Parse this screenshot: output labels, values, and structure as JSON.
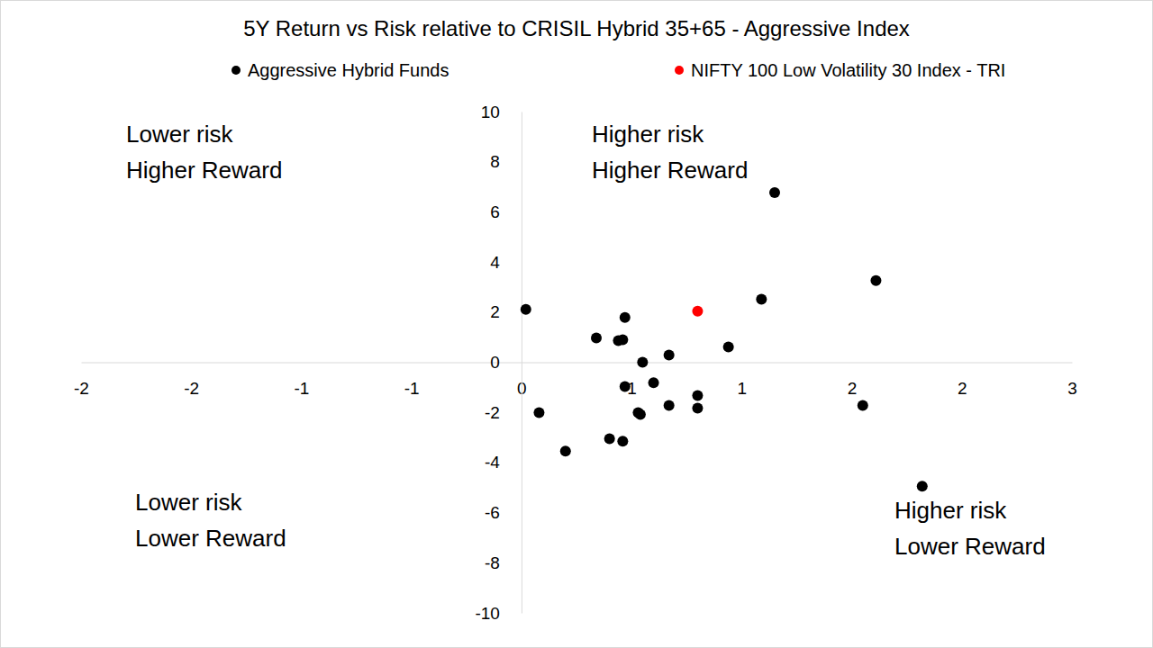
{
  "chart_data": {
    "type": "scatter",
    "title": "5Y Return vs Risk relative to CRISIL Hybrid 35+65 - Aggressive Index",
    "legend": "top",
    "marker": "circle",
    "series": [
      {
        "name": "Aggressive Hybrid Funds",
        "color": "#000000",
        "x": [
          0.02,
          1.15,
          1.61,
          1.09,
          0.47,
          0.34,
          0.44,
          0.46,
          0.67,
          0.55,
          0.94,
          0.47,
          0.6,
          0.8,
          0.67,
          0.8,
          1.55,
          0.08,
          0.53,
          0.54,
          0.4,
          0.46,
          0.2,
          1.82
        ],
        "values": [
          2.11,
          6.77,
          3.26,
          2.51,
          1.79,
          0.97,
          0.86,
          0.9,
          0.29,
          0.0,
          0.61,
          -0.97,
          -0.82,
          -1.33,
          -1.72,
          -1.83,
          -1.72,
          -2.01,
          -2.01,
          -2.08,
          -3.05,
          -3.15,
          -3.55,
          -4.95
        ]
      },
      {
        "name": "NIFTY 100 Low Volatility 30 Index - TRI",
        "color": "#ff0000",
        "x": [
          0.8
        ],
        "values": [
          2.04
        ]
      }
    ],
    "xlim": [
      -2,
      2.5
    ],
    "xticks": [
      {
        "value": -2,
        "label": "-2"
      },
      {
        "value": -1.5,
        "label": "-2"
      },
      {
        "value": -1,
        "label": "-1"
      },
      {
        "value": -0.5,
        "label": "-1"
      },
      {
        "value": 0,
        "label": "0"
      },
      {
        "value": 0.5,
        "label": "1"
      },
      {
        "value": 1,
        "label": "1"
      },
      {
        "value": 1.5,
        "label": "2"
      },
      {
        "value": 2,
        "label": "2"
      },
      {
        "value": 2.5,
        "label": "3"
      }
    ],
    "ylim": [
      -10,
      10
    ],
    "yticks": [
      -10,
      -8,
      -6,
      -4,
      -2,
      0,
      2,
      4,
      6,
      8,
      10
    ],
    "annotations": [
      [
        "Lower risk",
        "Higher Reward"
      ],
      [
        "Higher risk",
        "Higher Reward"
      ],
      [
        "Lower risk",
        "Lower Reward"
      ],
      [
        "Higher risk",
        "Lower Reward"
      ]
    ]
  }
}
